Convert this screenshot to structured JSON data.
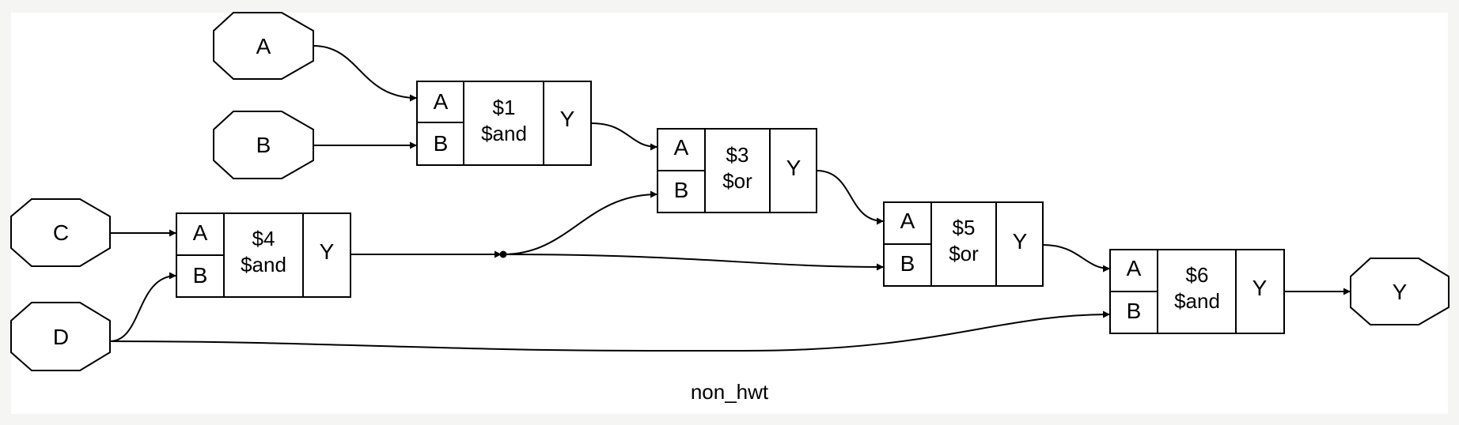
{
  "title": "non_hwt",
  "ports": {
    "A": "A",
    "B": "B",
    "C": "C",
    "D": "D",
    "Y": "Y"
  },
  "cells": {
    "c1": {
      "id": "$1",
      "type": "$and",
      "in_a": "A",
      "in_b": "B",
      "out": "Y"
    },
    "c3": {
      "id": "$3",
      "type": "$or",
      "in_a": "A",
      "in_b": "B",
      "out": "Y"
    },
    "c4": {
      "id": "$4",
      "type": "$and",
      "in_a": "A",
      "in_b": "B",
      "out": "Y"
    },
    "c5": {
      "id": "$5",
      "type": "$or",
      "in_a": "A",
      "in_b": "B",
      "out": "Y"
    },
    "c6": {
      "id": "$6",
      "type": "$and",
      "in_a": "A",
      "in_b": "B",
      "out": "Y"
    }
  },
  "colors": {
    "stroke": "#000000",
    "background": "#ffffff",
    "page": "#f5f5f3"
  }
}
